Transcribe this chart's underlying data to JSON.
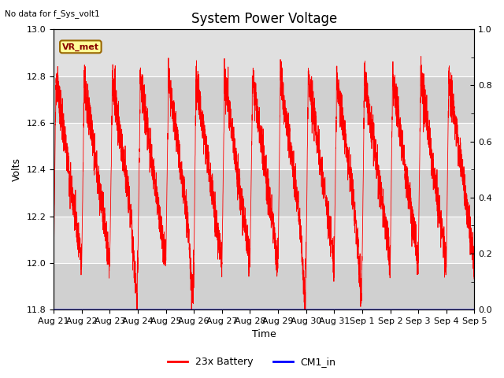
{
  "title": "System Power Voltage",
  "top_left_text": "No data for f_Sys_volt1",
  "annotation_text": "VR_met",
  "xlabel": "Time",
  "ylabel": "Volts",
  "ylim_left": [
    11.8,
    13.0
  ],
  "ylim_right": [
    0.0,
    1.0
  ],
  "yticks_left": [
    11.8,
    12.0,
    12.2,
    12.4,
    12.6,
    12.8,
    13.0
  ],
  "yticks_right": [
    0.0,
    0.2,
    0.4,
    0.6,
    0.8,
    1.0
  ],
  "xtick_labels": [
    "Aug 21",
    "Aug 22",
    "Aug 23",
    "Aug 24",
    "Aug 25",
    "Aug 26",
    "Aug 27",
    "Aug 28",
    "Aug 29",
    "Aug 30",
    "Aug 31",
    "Sep 1",
    "Sep 2",
    "Sep 3",
    "Sep 4",
    "Sep 5"
  ],
  "background_color": "#ffffff",
  "plot_bg_color": "#e8e8e8",
  "band_light_color": "#d8d8d8",
  "band_dark_color": "#c8c8c8",
  "grid_color": "#ffffff",
  "line_color_battery": "#ff0000",
  "line_color_cm1": "#0000ff",
  "legend_battery": "23x Battery",
  "legend_cm1": "CM1_in",
  "title_fontsize": 12,
  "label_fontsize": 9,
  "tick_fontsize": 8,
  "annotation_bg_color": "#ffff99",
  "annotation_border_color": "#996600"
}
